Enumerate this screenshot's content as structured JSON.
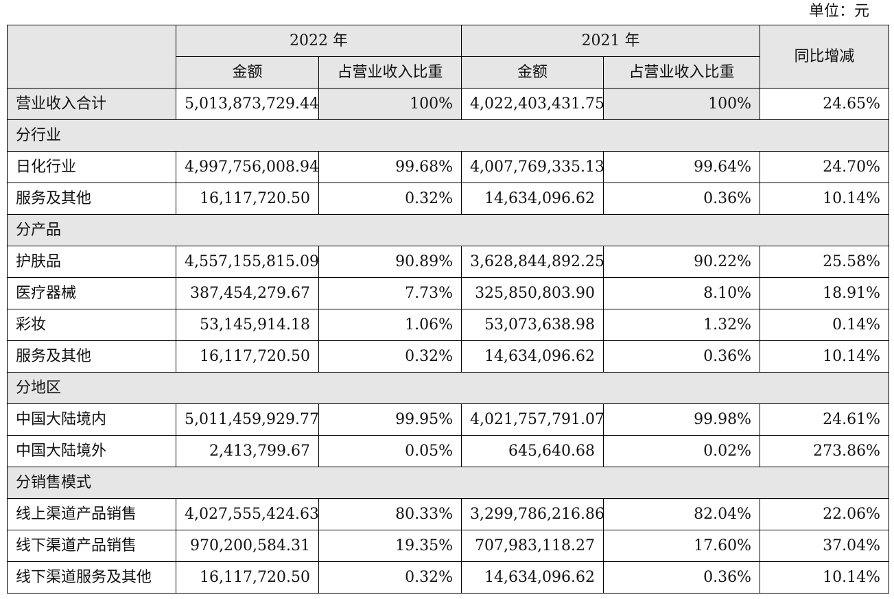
{
  "unit_label": "单位：元",
  "header": {
    "year_2022": "2022 年",
    "year_2021": "2021 年",
    "amount": "金额",
    "share": "占营业收入比重",
    "yoy": "同比增减"
  },
  "total": {
    "label": "营业收入合计",
    "amt_2022": "5,013,873,729.44",
    "pct_2022": "100%",
    "amt_2021": "4,022,403,431.75",
    "pct_2021": "100%",
    "yoy": "24.65%"
  },
  "sections": {
    "industry": {
      "title": "分行业",
      "rows": [
        {
          "label": "日化行业",
          "amt_2022": "4,997,756,008.94",
          "pct_2022": "99.68%",
          "amt_2021": "4,007,769,335.13",
          "pct_2021": "99.64%",
          "yoy": "24.70%"
        },
        {
          "label": "服务及其他",
          "amt_2022": "16,117,720.50",
          "pct_2022": "0.32%",
          "amt_2021": "14,634,096.62",
          "pct_2021": "0.36%",
          "yoy": "10.14%"
        }
      ]
    },
    "product": {
      "title": "分产品",
      "rows": [
        {
          "label": "护肤品",
          "amt_2022": "4,557,155,815.09",
          "pct_2022": "90.89%",
          "amt_2021": "3,628,844,892.25",
          "pct_2021": "90.22%",
          "yoy": "25.58%"
        },
        {
          "label": "医疗器械",
          "amt_2022": "387,454,279.67",
          "pct_2022": "7.73%",
          "amt_2021": "325,850,803.90",
          "pct_2021": "8.10%",
          "yoy": "18.91%"
        },
        {
          "label": "彩妆",
          "amt_2022": "53,145,914.18",
          "pct_2022": "1.06%",
          "amt_2021": "53,073,638.98",
          "pct_2021": "1.32%",
          "yoy": "0.14%"
        },
        {
          "label": "服务及其他",
          "amt_2022": "16,117,720.50",
          "pct_2022": "0.32%",
          "amt_2021": "14,634,096.62",
          "pct_2021": "0.36%",
          "yoy": "10.14%"
        }
      ]
    },
    "region": {
      "title": "分地区",
      "rows": [
        {
          "label": "中国大陆境内",
          "amt_2022": "5,011,459,929.77",
          "pct_2022": "99.95%",
          "amt_2021": "4,021,757,791.07",
          "pct_2021": "99.98%",
          "yoy": "24.61%"
        },
        {
          "label": "中国大陆境外",
          "amt_2022": "2,413,799.67",
          "pct_2022": "0.05%",
          "amt_2021": "645,640.68",
          "pct_2021": "0.02%",
          "yoy": "273.86%"
        }
      ]
    },
    "sales": {
      "title": "分销售模式",
      "rows": [
        {
          "label": "线上渠道产品销售",
          "amt_2022": "4,027,555,424.63",
          "pct_2022": "80.33%",
          "amt_2021": "3,299,786,216.86",
          "pct_2021": "82.04%",
          "yoy": "22.06%"
        },
        {
          "label": "线下渠道产品销售",
          "amt_2022": "970,200,584.31",
          "pct_2022": "19.35%",
          "amt_2021": "707,983,118.27",
          "pct_2021": "17.60%",
          "yoy": "37.04%"
        },
        {
          "label": "线下渠道服务及其他",
          "amt_2022": "16,117,720.50",
          "pct_2022": "0.32%",
          "amt_2021": "14,634,096.62",
          "pct_2021": "0.36%",
          "yoy": "10.14%"
        }
      ]
    }
  }
}
